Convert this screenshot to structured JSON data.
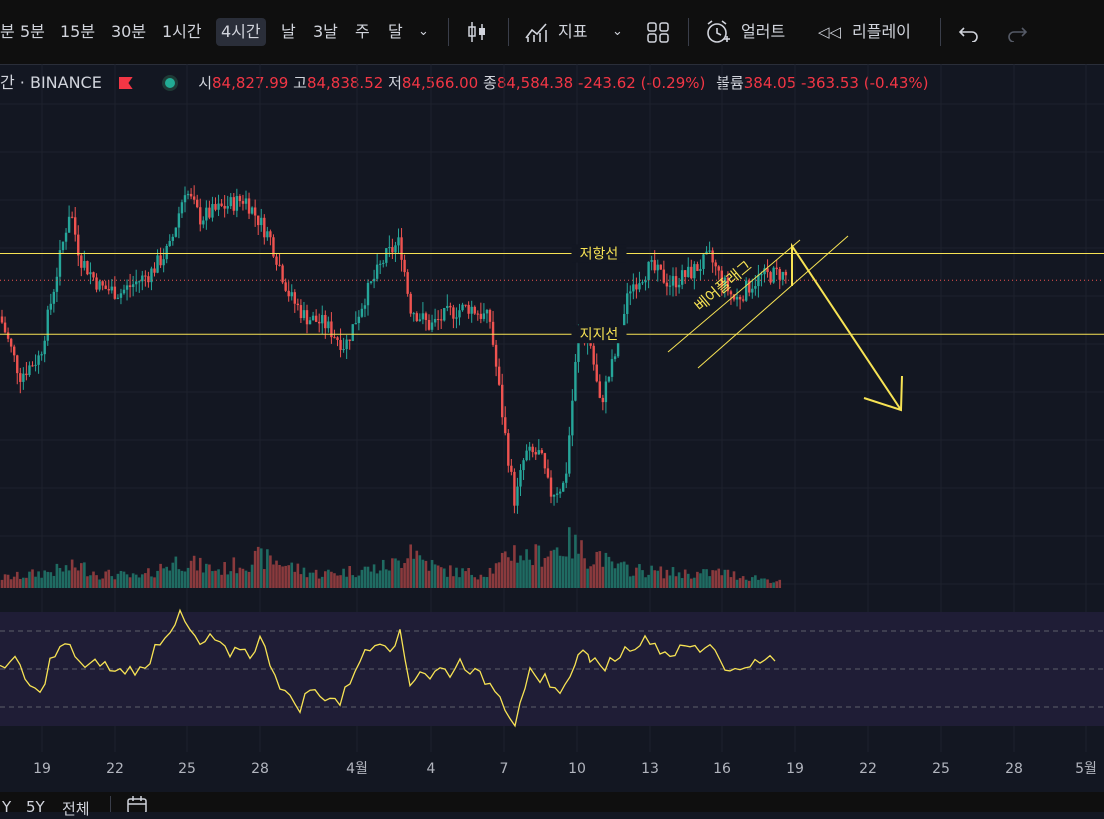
{
  "toolbar": {
    "timeframes": [
      "분",
      "5분",
      "15분",
      "30분",
      "1시간",
      "4시간",
      "날",
      "3날",
      "주",
      "달"
    ],
    "active_timeframe": "4시간",
    "indicators_label": "지표",
    "alert_label": "얼러트",
    "replay_label": "리플레이"
  },
  "legend": {
    "symbol": "간 · BINANCE",
    "o_label": "시",
    "o_value": "84,827.99",
    "h_label": "고",
    "h_value": "84,838.52",
    "l_label": "저",
    "l_value": "84,566.00",
    "c_label": "종",
    "c_value": "84,584.38",
    "change": "-243.62 (-0.29%)",
    "vol_label": "볼륨",
    "vol_value": "384.05",
    "vol_change": "-363.53 (-0.43%)"
  },
  "annotations": {
    "resistance_label": "저항선",
    "support_label": "지지선",
    "pattern_label": "베어플래그"
  },
  "colors": {
    "up": "#26a69a",
    "down": "#ef5350",
    "annotation": "#f7e354",
    "background": "#131722",
    "rsi_band": "#1f1d36"
  },
  "chart_data": {
    "type": "candlestick",
    "series": [
      {
        "name": "price",
        "points": [
          [
            0,
            84400
          ],
          [
            20,
            84100
          ],
          [
            40,
            84200
          ],
          [
            70,
            84950
          ],
          [
            80,
            84700
          ],
          [
            100,
            84550
          ],
          [
            120,
            84520
          ],
          [
            150,
            84620
          ],
          [
            170,
            84750
          ],
          [
            185,
            85050
          ],
          [
            200,
            84900
          ],
          [
            225,
            84960
          ],
          [
            245,
            85000
          ],
          [
            270,
            84800
          ],
          [
            290,
            84500
          ],
          [
            305,
            84400
          ],
          [
            325,
            84360
          ],
          [
            345,
            84250
          ],
          [
            365,
            84500
          ],
          [
            385,
            84700
          ],
          [
            400,
            84780
          ],
          [
            410,
            84450
          ],
          [
            430,
            84350
          ],
          [
            450,
            84420
          ],
          [
            470,
            84450
          ],
          [
            490,
            84380
          ],
          [
            505,
            83800
          ],
          [
            515,
            83450
          ],
          [
            525,
            83700
          ],
          [
            540,
            83700
          ],
          [
            550,
            83500
          ],
          [
            565,
            83550
          ],
          [
            578,
            84300
          ],
          [
            590,
            84280
          ],
          [
            600,
            83950
          ],
          [
            615,
            84200
          ],
          [
            630,
            84550
          ],
          [
            650,
            84650
          ],
          [
            670,
            84570
          ],
          [
            690,
            84620
          ],
          [
            710,
            84700
          ],
          [
            720,
            84600
          ],
          [
            735,
            84480
          ],
          [
            750,
            84560
          ],
          [
            760,
            84600
          ],
          [
            780,
            84620
          ],
          [
            790,
            84590
          ]
        ]
      },
      {
        "name": "volume",
        "points": [
          [
            0,
            10
          ],
          [
            20,
            12
          ],
          [
            40,
            15
          ],
          [
            60,
            18
          ],
          [
            80,
            22
          ],
          [
            100,
            14
          ],
          [
            120,
            13
          ],
          [
            140,
            10
          ],
          [
            160,
            20
          ],
          [
            180,
            28
          ],
          [
            200,
            22
          ],
          [
            220,
            18
          ],
          [
            240,
            24
          ],
          [
            260,
            30
          ],
          [
            280,
            26
          ],
          [
            300,
            18
          ],
          [
            320,
            14
          ],
          [
            340,
            16
          ],
          [
            360,
            18
          ],
          [
            380,
            20
          ],
          [
            400,
            26
          ],
          [
            410,
            45
          ],
          [
            420,
            30
          ],
          [
            440,
            18
          ],
          [
            460,
            16
          ],
          [
            480,
            14
          ],
          [
            500,
            22
          ],
          [
            510,
            38
          ],
          [
            520,
            35
          ],
          [
            530,
            30
          ],
          [
            545,
            36
          ],
          [
            560,
            40
          ],
          [
            570,
            44
          ],
          [
            580,
            38
          ],
          [
            590,
            30
          ],
          [
            600,
            34
          ],
          [
            610,
            22
          ],
          [
            620,
            20
          ],
          [
            640,
            18
          ],
          [
            660,
            16
          ],
          [
            680,
            15
          ],
          [
            700,
            14
          ],
          [
            720,
            16
          ],
          [
            740,
            12
          ],
          [
            760,
            10
          ],
          [
            780,
            6
          ]
        ]
      },
      {
        "name": "rsi",
        "points": [
          [
            0,
            52
          ],
          [
            15,
            55
          ],
          [
            25,
            44
          ],
          [
            40,
            36
          ],
          [
            50,
            54
          ],
          [
            65,
            63
          ],
          [
            75,
            58
          ],
          [
            85,
            50
          ],
          [
            100,
            54
          ],
          [
            115,
            48
          ],
          [
            130,
            50
          ],
          [
            145,
            49
          ],
          [
            155,
            62
          ],
          [
            165,
            68
          ],
          [
            180,
            78
          ],
          [
            190,
            70
          ],
          [
            200,
            62
          ],
          [
            210,
            66
          ],
          [
            220,
            64
          ],
          [
            230,
            55
          ],
          [
            240,
            62
          ],
          [
            250,
            57
          ],
          [
            260,
            66
          ],
          [
            270,
            54
          ],
          [
            280,
            42
          ],
          [
            290,
            34
          ],
          [
            300,
            30
          ],
          [
            310,
            40
          ],
          [
            320,
            35
          ],
          [
            330,
            36
          ],
          [
            340,
            32
          ],
          [
            350,
            44
          ],
          [
            360,
            56
          ],
          [
            370,
            60
          ],
          [
            380,
            66
          ],
          [
            390,
            62
          ],
          [
            400,
            68
          ],
          [
            410,
            42
          ],
          [
            420,
            50
          ],
          [
            430,
            46
          ],
          [
            440,
            50
          ],
          [
            450,
            48
          ],
          [
            460,
            54
          ],
          [
            470,
            50
          ],
          [
            480,
            46
          ],
          [
            490,
            42
          ],
          [
            500,
            38
          ],
          [
            505,
            30
          ],
          [
            515,
            22
          ],
          [
            520,
            34
          ],
          [
            530,
            48
          ],
          [
            540,
            40
          ],
          [
            545,
            46
          ],
          [
            550,
            38
          ],
          [
            560,
            40
          ],
          [
            570,
            44
          ],
          [
            578,
            60
          ],
          [
            590,
            56
          ],
          [
            600,
            50
          ],
          [
            610,
            54
          ],
          [
            620,
            58
          ],
          [
            630,
            62
          ],
          [
            640,
            64
          ],
          [
            650,
            66
          ],
          [
            660,
            60
          ],
          [
            670,
            58
          ],
          [
            680,
            60
          ],
          [
            690,
            62
          ],
          [
            700,
            60
          ],
          [
            710,
            64
          ],
          [
            720,
            56
          ],
          [
            730,
            48
          ],
          [
            740,
            50
          ],
          [
            750,
            54
          ],
          [
            760,
            52
          ],
          [
            770,
            56
          ],
          [
            780,
            54
          ]
        ]
      }
    ],
    "resistance": 84720,
    "support": 84310,
    "price_range": [
      83000,
      85500
    ],
    "rsi_range": [
      20,
      80
    ],
    "rsi_levels": [
      30,
      50,
      70
    ],
    "x_labels": [
      "19",
      "22",
      "25",
      "28",
      "4월",
      "4",
      "7",
      "10",
      "13",
      "16",
      "19",
      "22",
      "25",
      "28",
      "5월"
    ]
  },
  "bottom_bar": {
    "ranges": [
      "Y",
      "5Y",
      "전체"
    ]
  }
}
